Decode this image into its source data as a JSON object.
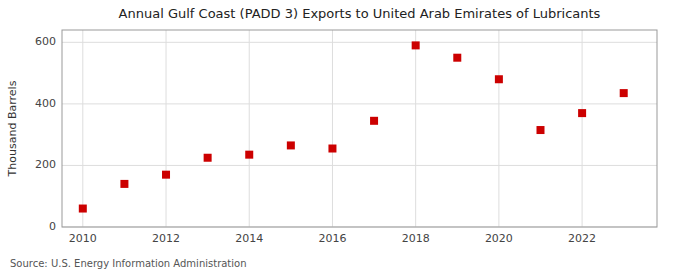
{
  "chart_data": {
    "type": "scatter",
    "title": "Annual Gulf Coast (PADD 3) Exports to United Arab Emirates of Lubricants",
    "y_label": "Thousand Barrels",
    "annotations": [
      "Source: U.S. Energy Information Administration"
    ],
    "x": [
      2010,
      2011,
      2012,
      2013,
      2014,
      2015,
      2016,
      2017,
      2018,
      2019,
      2020,
      2021,
      2022,
      2023
    ],
    "values": [
      60,
      140,
      170,
      225,
      235,
      265,
      255,
      345,
      590,
      550,
      480,
      315,
      370,
      435
    ],
    "xlim": [
      2009.5,
      2023.8
    ],
    "ylim": [
      0,
      640
    ],
    "xticks": [
      2010,
      2012,
      2014,
      2016,
      2018,
      2020,
      2022
    ],
    "yticks": [
      0,
      200,
      400,
      600
    ],
    "color": "#cc0000",
    "marker": "square",
    "grid": true
  }
}
